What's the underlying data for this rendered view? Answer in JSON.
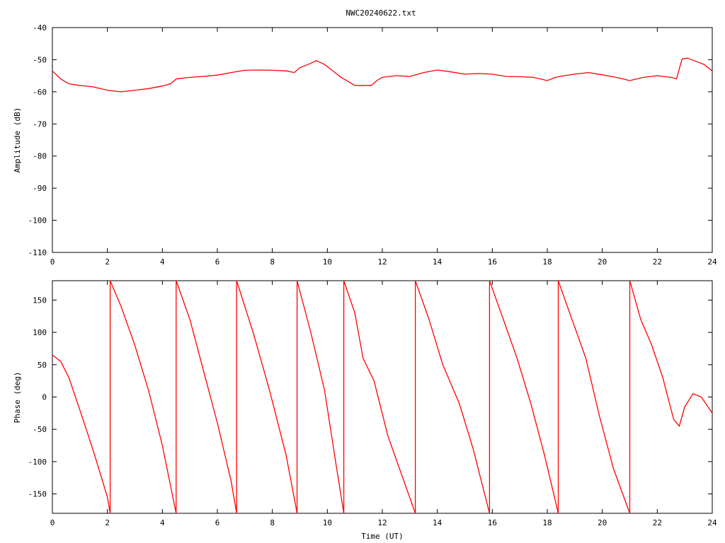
{
  "title": "NWC20240622.txt",
  "colors": {
    "series": "#ff0000",
    "axis": "#000000",
    "background": "#ffffff"
  },
  "chart_data": [
    {
      "type": "line",
      "ylabel": "Amplitude (dB)",
      "xlabel": "",
      "xlim": [
        0,
        24
      ],
      "ylim": [
        -110,
        -40
      ],
      "xticks": [
        0,
        2,
        4,
        6,
        8,
        10,
        12,
        14,
        16,
        18,
        20,
        22,
        24
      ],
      "yticks": [
        -110,
        -100,
        -90,
        -80,
        -70,
        -60,
        -50,
        -40
      ],
      "grid": false,
      "series": [
        {
          "x": [
            0,
            0.3,
            0.6,
            1.0,
            1.5,
            2.0,
            2.5,
            3.0,
            3.5,
            4.0,
            4.3,
            4.5,
            5.0,
            5.5,
            6.0,
            6.5,
            7.0,
            7.5,
            8.0,
            8.5,
            8.8,
            9.0,
            9.3,
            9.6,
            9.9,
            10.2,
            10.5,
            10.8,
            11.0,
            11.3,
            11.6,
            11.8,
            12.0,
            12.5,
            13.0,
            13.5,
            14.0,
            14.5,
            15.0,
            15.5,
            16.0,
            16.5,
            17.0,
            17.5,
            18.0,
            18.3,
            18.6,
            19.0,
            19.5,
            20.0,
            20.5,
            21.0,
            21.5,
            22.0,
            22.5,
            22.7,
            22.9,
            23.1,
            23.4,
            23.7,
            24.0
          ],
          "values": [
            -53.5,
            -56,
            -57.5,
            -58,
            -58.5,
            -59.5,
            -60,
            -59.5,
            -59,
            -58.2,
            -57.5,
            -56,
            -55.5,
            -55.2,
            -54.8,
            -54,
            -53.3,
            -53.2,
            -53.3,
            -53.5,
            -54,
            -52.5,
            -51.5,
            -50.3,
            -51.5,
            -53.5,
            -55.5,
            -57,
            -58,
            -58,
            -58,
            -56.5,
            -55.5,
            -55,
            -55.2,
            -54,
            -53.2,
            -53.8,
            -54.5,
            -54.3,
            -54.5,
            -55.2,
            -55.3,
            -55.5,
            -56.5,
            -55.5,
            -55,
            -54.5,
            -54,
            -54.7,
            -55.5,
            -56.5,
            -55.5,
            -55,
            -55.5,
            -56,
            -49.8,
            -49.5,
            -50.5,
            -51.5,
            -53.5
          ]
        }
      ]
    },
    {
      "type": "line",
      "ylabel": "Phase (deg)",
      "xlabel": "Time (UT)",
      "xlim": [
        0,
        24
      ],
      "ylim": [
        -180,
        180
      ],
      "xticks": [
        0,
        2,
        4,
        6,
        8,
        10,
        12,
        14,
        16,
        18,
        20,
        22,
        24
      ],
      "yticks": [
        -150,
        -100,
        -50,
        0,
        50,
        100,
        150
      ],
      "grid": false,
      "series": [
        {
          "segments": [
            {
              "x": [
                0,
                0.3,
                0.6,
                1.0,
                1.5,
                2.0,
                2.1
              ],
              "values": [
                65,
                55,
                30,
                -20,
                -85,
                -155,
                -180
              ]
            },
            {
              "x": [
                2.1,
                2.5,
                3.0,
                3.5,
                4.0,
                4.5
              ],
              "values": [
                180,
                140,
                80,
                10,
                -75,
                -180
              ]
            },
            {
              "x": [
                4.5,
                5.0,
                5.5,
                6.0,
                6.5,
                6.7
              ],
              "values": [
                180,
                120,
                40,
                -40,
                -130,
                -180
              ]
            },
            {
              "x": [
                6.7,
                7.3,
                7.9,
                8.5,
                8.9
              ],
              "values": [
                180,
                100,
                10,
                -90,
                -180
              ]
            },
            {
              "x": [
                8.9,
                9.4,
                9.9,
                10.3,
                10.6
              ],
              "values": [
                180,
                100,
                10,
                -100,
                -180
              ]
            },
            {
              "x": [
                10.6,
                11.0,
                11.3,
                11.7,
                12.2,
                12.7,
                13.2
              ],
              "values": [
                180,
                130,
                60,
                25,
                -60,
                -120,
                -180
              ]
            },
            {
              "x": [
                13.2,
                13.7,
                14.2,
                14.8,
                15.3,
                15.9
              ],
              "values": [
                180,
                120,
                50,
                -10,
                -80,
                -180
              ]
            },
            {
              "x": [
                15.9,
                16.4,
                16.9,
                17.4,
                17.9,
                18.4
              ],
              "values": [
                180,
                120,
                60,
                -10,
                -90,
                -180
              ]
            },
            {
              "x": [
                18.4,
                18.9,
                19.4,
                19.9,
                20.4,
                21.0
              ],
              "values": [
                180,
                120,
                60,
                -30,
                -110,
                -180
              ]
            },
            {
              "x": [
                21.0,
                21.4,
                21.8,
                22.2,
                22.6,
                22.8,
                23.0,
                23.3,
                23.6,
                24.0
              ],
              "values": [
                180,
                120,
                80,
                30,
                -35,
                -45,
                -15,
                5,
                0,
                -25
              ]
            }
          ]
        }
      ]
    }
  ]
}
